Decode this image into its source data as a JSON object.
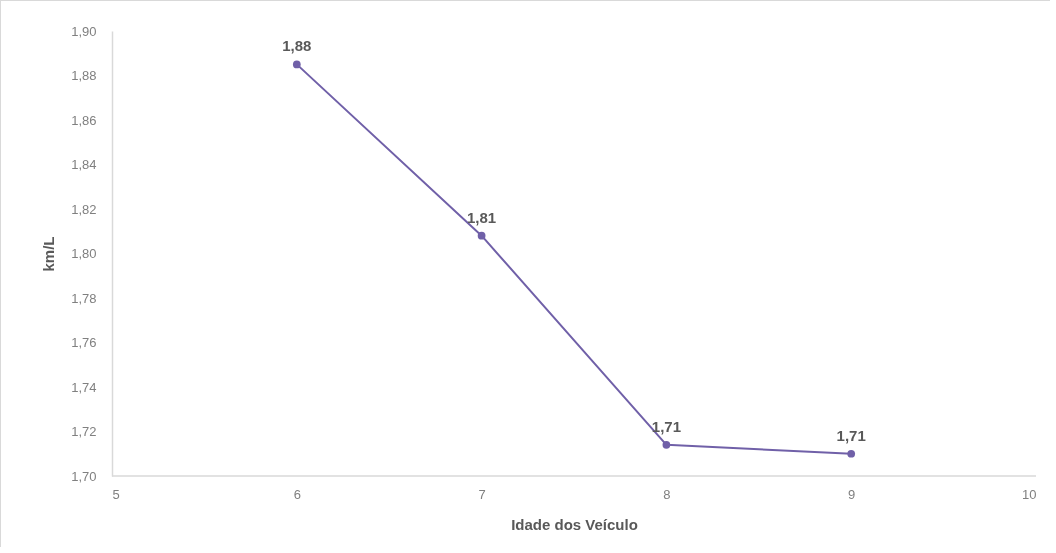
{
  "chart_data": {
    "type": "line",
    "xlabel": "Idade dos Veículo",
    "ylabel": "km/L",
    "x": [
      6,
      7,
      8,
      9
    ],
    "series": [
      {
        "color": "#7060a8",
        "values": [
          1.885,
          1.808,
          1.714,
          1.71
        ],
        "value_labels": [
          "1,88",
          "1,81",
          "1,71",
          "1,71"
        ]
      }
    ],
    "xlim": [
      5,
      10
    ],
    "xticks": [
      5,
      6,
      7,
      8,
      9,
      10
    ],
    "ylim": [
      1.7,
      1.9
    ],
    "yticks": [
      {
        "value": 1.7,
        "label": "1,70"
      },
      {
        "value": 1.72,
        "label": "1,72"
      },
      {
        "value": 1.74,
        "label": "1,74"
      },
      {
        "value": 1.76,
        "label": "1,76"
      },
      {
        "value": 1.78,
        "label": "1,78"
      },
      {
        "value": 1.8,
        "label": "1,80"
      },
      {
        "value": 1.82,
        "label": "1,82"
      },
      {
        "value": 1.84,
        "label": "1,84"
      },
      {
        "value": 1.86,
        "label": "1,86"
      },
      {
        "value": 1.88,
        "label": "1,88"
      },
      {
        "value": 1.9,
        "label": "1,90"
      }
    ],
    "grid": false,
    "marker": "circle",
    "line_style": "solid"
  }
}
